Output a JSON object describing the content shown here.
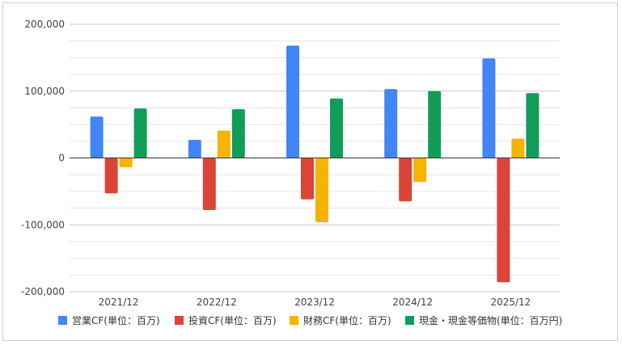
{
  "chart_data": {
    "type": "bar",
    "categories": [
      "2021/12",
      "2022/12",
      "2023/12",
      "2024/12",
      "2025/12"
    ],
    "series": [
      {
        "name": "営業CF(単位：百万)",
        "color": "#4285F4",
        "values": [
          62000,
          27000,
          168000,
          103000,
          149000
        ]
      },
      {
        "name": "投資CF(単位：百万)",
        "color": "#DB4437",
        "values": [
          -53000,
          -78000,
          -62000,
          -65000,
          -186000
        ]
      },
      {
        "name": "財務CF(単位：百万)",
        "color": "#F4B400",
        "values": [
          -14000,
          41000,
          -96000,
          -36000,
          29000
        ]
      },
      {
        "name": "現金・現金等価物(単位：百万円)",
        "color": "#0F9D58",
        "values": [
          74000,
          73000,
          89000,
          100000,
          97000
        ]
      }
    ],
    "ylim": [
      -200000,
      200000
    ],
    "yticks": [
      200000,
      100000,
      0,
      -100000,
      -200000
    ],
    "ytick_labels": [
      "200,000",
      "100,000",
      "0",
      "-100,000",
      "-200,000"
    ],
    "minor_grid_step": 25000,
    "grid": true,
    "legend_position": "bottom"
  }
}
